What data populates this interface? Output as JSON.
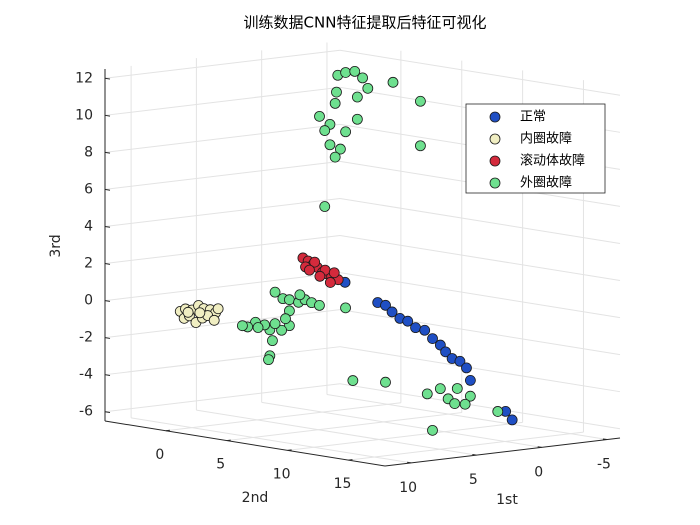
{
  "chart_data": {
    "type": "scatter3d",
    "title": "训练数据CNN特征提取后特征可视化",
    "xlabel": "1st",
    "ylabel": "2nd",
    "zlabel": "3rd",
    "xlim": [
      -6,
      12
    ],
    "ylim": [
      -5,
      18
    ],
    "zlim": [
      -6.5,
      12.5
    ],
    "xticks": [
      -5,
      0,
      5,
      10
    ],
    "yticks": [
      0,
      5,
      10,
      15
    ],
    "zticks": [
      -6,
      -4,
      -2,
      0,
      2,
      4,
      6,
      8,
      10,
      12
    ],
    "grid": true,
    "legend": "northeast",
    "series": [
      {
        "name": "正常",
        "color": "#1f4fc4",
        "x": [
          5.1,
          4.5,
          4.0,
          3.4,
          2.8,
          2.2,
          1.5,
          0.9,
          0.3,
          -0.1,
          -0.6,
          -1.2,
          -1.7,
          -2.0,
          -4.7,
          -5.2,
          7.6
        ],
        "y": [
          10,
          10,
          10,
          10,
          10,
          10,
          10,
          10,
          10,
          10,
          10,
          10,
          10,
          10,
          10,
          10,
          10
        ],
        "z": [
          0.9,
          0.7,
          0.3,
          -0.1,
          -0.3,
          -0.7,
          -0.9,
          -1.4,
          -1.8,
          -2.2,
          -2.6,
          -2.8,
          -3.2,
          -3.9,
          -5.8,
          -6.3,
          2.2
        ]
      },
      {
        "name": "内圈故障",
        "color": "#f0eec2",
        "x": [
          8.1,
          7.7,
          7.2,
          6.7,
          6.3,
          5.8,
          5.4,
          7.8,
          7.4,
          6.9,
          6.4,
          6.0,
          5.5,
          5.2,
          6.6,
          7.5
        ],
        "y": [
          -3,
          -3,
          -3,
          -3,
          -3,
          -3,
          -3,
          -3,
          -3,
          -3,
          -3,
          -3,
          -3,
          -3,
          -3,
          -3
        ],
        "z": [
          -0.7,
          -0.6,
          -0.7,
          -0.5,
          -0.7,
          -0.8,
          -1.0,
          -1.1,
          -1.0,
          -1.4,
          -1.2,
          -1.1,
          -1.4,
          -0.8,
          -0.9,
          -0.8
        ]
      },
      {
        "name": "滚动体故障",
        "color": "#d42a3c",
        "x": [
          4.3,
          3.9,
          3.5,
          3.2,
          2.8,
          2.5,
          2.1,
          1.6,
          4.1,
          3.4,
          2.6,
          1.9,
          3.8,
          3.0,
          2.2
        ],
        "y": [
          3,
          3,
          3,
          3,
          3,
          3,
          3,
          3,
          3,
          3,
          3,
          3,
          3,
          3,
          3
        ],
        "z": [
          2.5,
          2.3,
          2.1,
          1.9,
          1.6,
          1.5,
          1.3,
          1.1,
          2.0,
          2.2,
          1.7,
          1.5,
          1.8,
          1.4,
          1.0
        ]
      },
      {
        "name": "外圈故障",
        "color": "#6ee08f",
        "x": [
          -2.1,
          -2.7,
          -3.4,
          -4.0,
          -4.4,
          -2.6,
          -4.7,
          -4.7,
          -2.0,
          -3.6,
          -1.9,
          -0.7,
          -1.5,
          -2.7,
          -3.6,
          -1.1,
          -1.5,
          -2.3,
          -1.9,
          -1.1,
          8.3,
          7.7,
          7.2,
          6.5,
          6.0,
          5.5,
          4.9,
          6.4,
          7.2,
          7.2,
          7.8,
          8.7,
          9.1,
          9.8,
          10.4,
          9.6,
          7.5,
          8.3,
          8.7,
          8.8,
          8.5,
          2.9,
          10.8,
          9.8,
          7.3,
          3.1,
          2.5,
          4.1,
          1.8,
          0.8,
          1.2,
          2.0,
          -1.3,
          3.7
        ],
        "y": [
          -1,
          -1,
          -1,
          -1,
          -1,
          3,
          3,
          3,
          -1,
          -1,
          -1,
          -1,
          -1,
          -1,
          -1,
          -1,
          -1,
          -1,
          -1,
          -1,
          5,
          5,
          5,
          5,
          5,
          5,
          5,
          5,
          5,
          5,
          5,
          5,
          5,
          5,
          5,
          5,
          5,
          5,
          5,
          5,
          5,
          5,
          5,
          13,
          13,
          13,
          13,
          13,
          13,
          13,
          13,
          13,
          13,
          13
        ],
        "z": [
          11.4,
          11.5,
          11.5,
          11.1,
          10.5,
          11.4,
          10.2,
          7.8,
          10.5,
          10.1,
          9.9,
          9.3,
          8.8,
          8.3,
          8.9,
          8.5,
          7.7,
          7.4,
          7.0,
          4.4,
          1.2,
          0.8,
          0.7,
          0.5,
          0.6,
          0.4,
          0.2,
          0.9,
          0.1,
          -0.7,
          -0.9,
          -0.8,
          -0.5,
          -0.3,
          -0.5,
          -0.6,
          -0.3,
          -0.5,
          -2.2,
          -2.4,
          -1.4,
          -0.1,
          -0.4,
          -2.6,
          -2.9,
          -3.6,
          -4.2,
          -3.8,
          -3.7,
          -4.2,
          -4.6,
          -4.5,
          -5.2,
          -5.8
        ]
      }
    ]
  }
}
